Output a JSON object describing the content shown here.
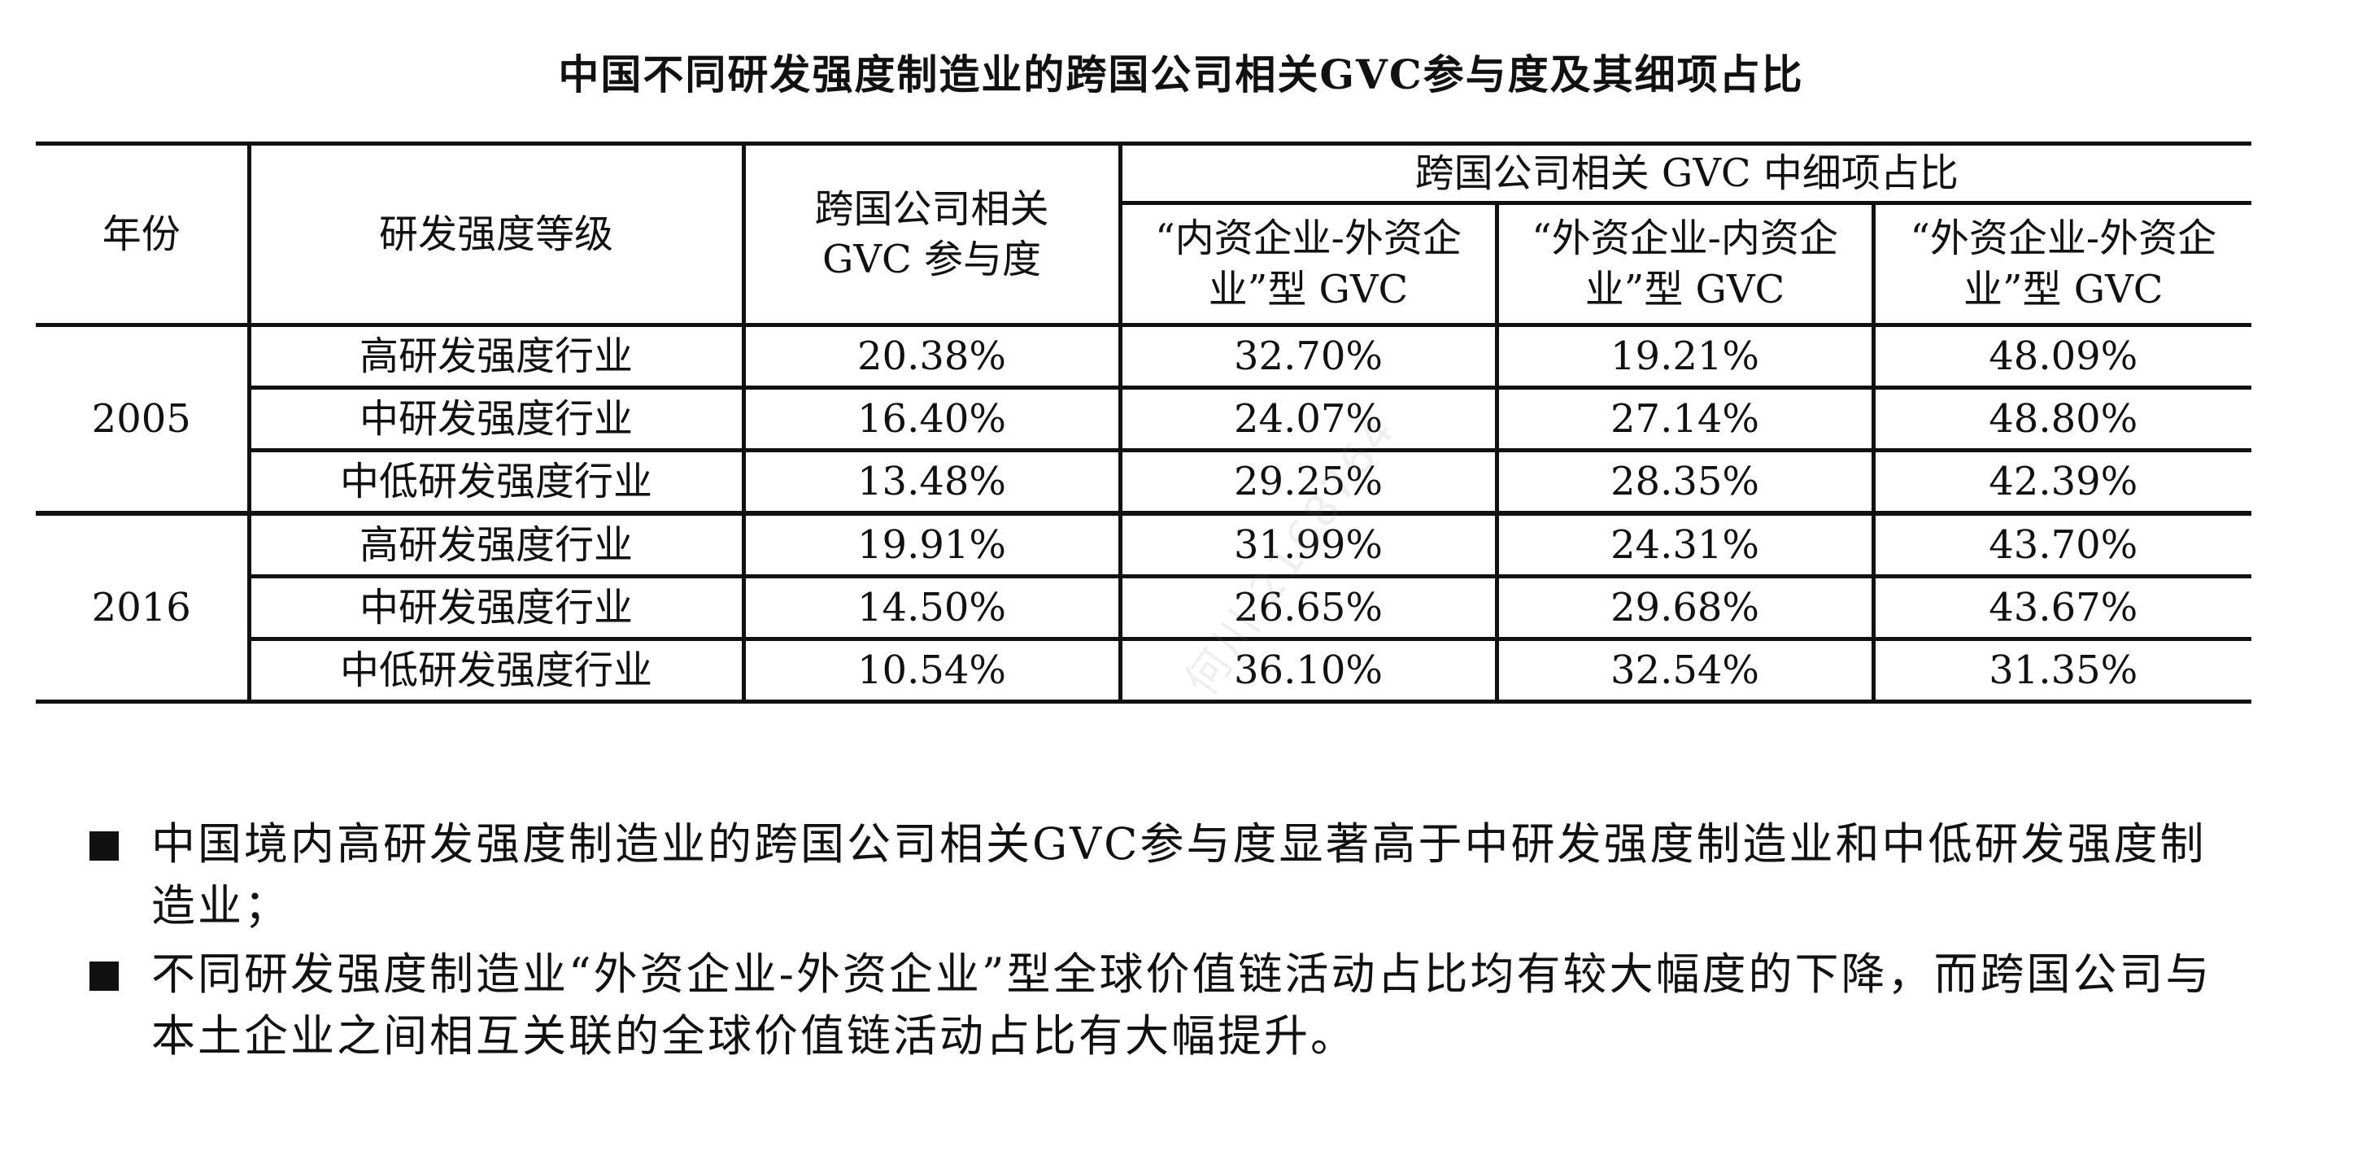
{
  "title": "中国不同研发强度制造业的跨国公司相关GVC参与度及其细项占比",
  "table": {
    "col_year": "年份",
    "col_level": "研发强度等级",
    "col_participation": "跨国公司相关GVC 参与度",
    "col_group": "跨国公司相关 GVC 中细项占比",
    "sub_cols": [
      "“内资企业-外资企业”型 GVC",
      "“外资企业-内资企业”型 GVC",
      "“外资企业-外资企业”型 GVC"
    ],
    "groups": [
      {
        "year": "2005",
        "rows": [
          {
            "level": "高研发强度行业",
            "participation": "20.38%",
            "a": "32.70%",
            "b": "19.21%",
            "c": "48.09%"
          },
          {
            "level": "中研发强度行业",
            "participation": "16.40%",
            "a": "24.07%",
            "b": "27.14%",
            "c": "48.80%"
          },
          {
            "level": "中低研发强度行业",
            "participation": "13.48%",
            "a": "29.25%",
            "b": "28.35%",
            "c": "42.39%"
          }
        ]
      },
      {
        "year": "2016",
        "rows": [
          {
            "level": "高研发强度行业",
            "participation": "19.91%",
            "a": "31.99%",
            "b": "24.31%",
            "c": "43.70%"
          },
          {
            "level": "中研发强度行业",
            "participation": "14.50%",
            "a": "26.65%",
            "b": "29.68%",
            "c": "43.67%"
          },
          {
            "level": "中低研发强度行业",
            "participation": "10.54%",
            "a": "36.10%",
            "b": "32.54%",
            "c": "31.35%"
          }
        ]
      }
    ]
  },
  "bullets": [
    "中国境内高研发强度制造业的跨国公司相关GVC参与度显著高于中研发强度制造业和中低研发强度制造业；",
    "不同研发强度制造业“外资企业-外资企业”型全球价值链活动占比均有较大幅度的下降，而跨国公司与本土企业之间相互关联的全球价值链活动占比有大幅提升。"
  ],
  "watermark": "何川 2168764"
}
